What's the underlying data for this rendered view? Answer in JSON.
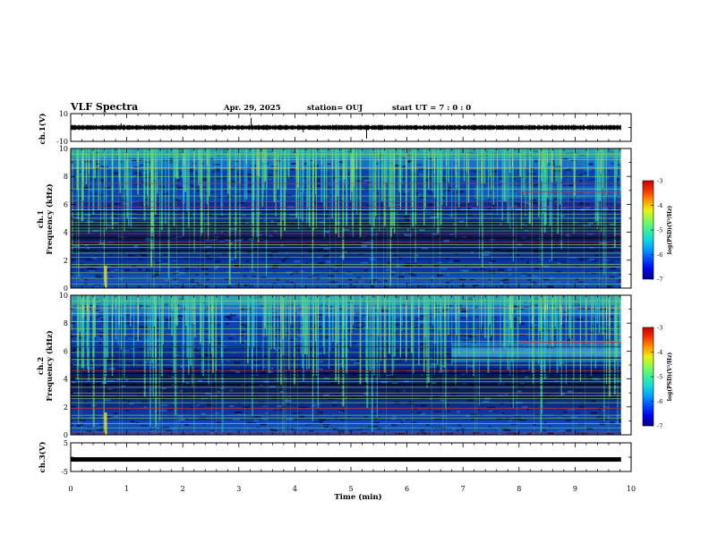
{
  "header": {
    "title": "VLF Spectra",
    "date": "Apr. 29, 2025",
    "station": "station= OUJ",
    "start": "start UT =   7 : 0  : 0"
  },
  "colors": {
    "spectrogram_background": "#0a2a8c",
    "burst": "#30d0a0",
    "line": "#8ee050"
  },
  "chart_data": [
    {
      "type": "line",
      "name": "ch1-waveform",
      "ylabel": "ch.1(V)",
      "ylim": [
        -10,
        10
      ],
      "yticks": [
        "10",
        "-10"
      ],
      "xlim": [
        0,
        10
      ],
      "baseline": 0,
      "grid": false
    },
    {
      "type": "heatmap",
      "name": "ch1-spectrogram",
      "ylabel": "ch.1\nFrequency (kHz)",
      "ylim": [
        0,
        10
      ],
      "yticks": [
        "0",
        "2",
        "4",
        "6",
        "8",
        "10"
      ],
      "xlim": [
        0,
        10
      ],
      "colorbar": {
        "label": "log(PSD)(V²/Hz)",
        "range": [
          -7,
          -3
        ],
        "ticks": [
          "-3",
          "-4",
          "-5",
          "-6",
          "-7"
        ]
      }
    },
    {
      "type": "heatmap",
      "name": "ch2-spectrogram",
      "ylabel": "ch.2\nFrequency (kHz)",
      "ylim": [
        0,
        10
      ],
      "yticks": [
        "0",
        "2",
        "4",
        "6",
        "8",
        "10"
      ],
      "xlim": [
        0,
        10
      ],
      "colorbar": {
        "label": "log(PSD)(V²/Hz)",
        "range": [
          -7,
          -3
        ],
        "ticks": [
          "-3",
          "-4",
          "-5",
          "-6",
          "-7"
        ]
      }
    },
    {
      "type": "line",
      "name": "ch3-waveform",
      "ylabel": "ch.3(V)",
      "ylim": [
        -5,
        5
      ],
      "yticks": [
        "5",
        "-5"
      ],
      "xlim": [
        0,
        10
      ],
      "baseline": -0.8,
      "grid": false
    }
  ],
  "xaxis": {
    "label": "Time (min)",
    "ticks": [
      "0",
      "1",
      "2",
      "3",
      "4",
      "5",
      "6",
      "7",
      "8",
      "9",
      "10"
    ],
    "range": [
      0,
      10
    ]
  }
}
